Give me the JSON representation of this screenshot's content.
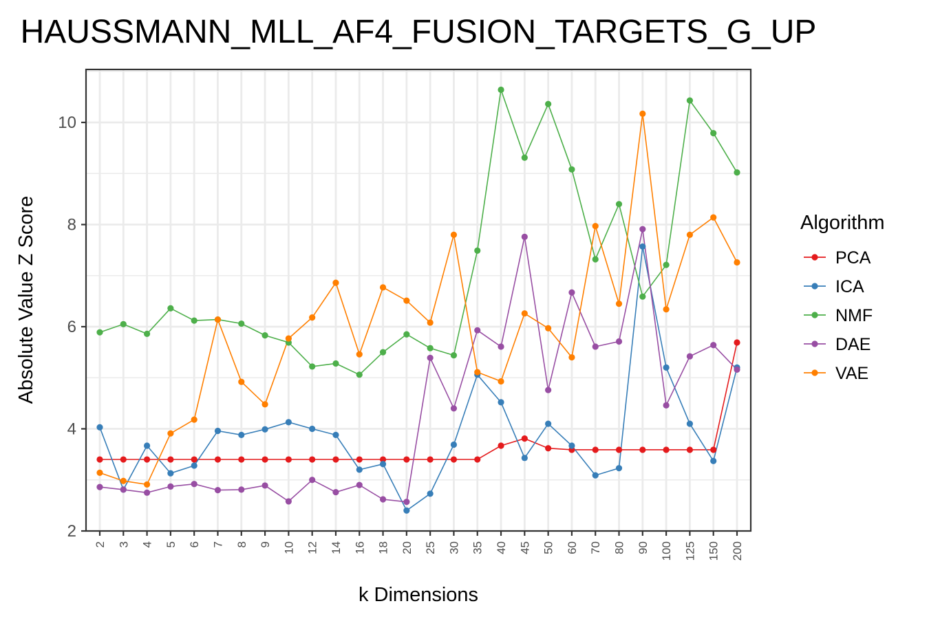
{
  "chart_data": {
    "type": "line",
    "title": "HAUSSMANN_MLL_AF4_FUSION_TARGETS_G_UP",
    "xlabel": "k Dimensions",
    "ylabel": "Absolute Value Z Score",
    "categories": [
      "2",
      "3",
      "4",
      "5",
      "6",
      "7",
      "8",
      "9",
      "10",
      "12",
      "14",
      "16",
      "18",
      "20",
      "25",
      "30",
      "35",
      "40",
      "45",
      "50",
      "60",
      "70",
      "80",
      "90",
      "100",
      "125",
      "150",
      "200"
    ],
    "ylim": [
      2,
      11
    ],
    "yticks": [
      "2",
      "4",
      "6",
      "8",
      "10"
    ],
    "grid": true,
    "legend": {
      "title": "Algorithm",
      "position": "right"
    },
    "series": [
      {
        "name": "PCA",
        "color": "#e41a1c",
        "values": [
          3.4,
          3.4,
          3.4,
          3.4,
          3.4,
          3.4,
          3.4,
          3.4,
          3.4,
          3.4,
          3.4,
          3.4,
          3.4,
          3.4,
          3.4,
          3.4,
          3.4,
          3.67,
          3.81,
          3.62,
          3.59,
          3.59,
          3.59,
          3.59,
          3.59,
          3.59,
          3.59,
          5.69
        ]
      },
      {
        "name": "ICA",
        "color": "#377eb8",
        "values": [
          4.03,
          2.81,
          3.67,
          3.13,
          3.28,
          3.96,
          3.88,
          3.99,
          4.13,
          4.0,
          3.88,
          3.2,
          3.31,
          2.4,
          2.73,
          3.69,
          5.06,
          4.52,
          3.43,
          4.1,
          3.67,
          3.09,
          3.23,
          7.57,
          5.2,
          4.1,
          3.37,
          5.2
        ]
      },
      {
        "name": "NMF",
        "color": "#4daf4a",
        "values": [
          5.89,
          6.05,
          5.86,
          6.36,
          6.12,
          6.14,
          6.06,
          5.83,
          5.69,
          5.22,
          5.28,
          5.06,
          5.5,
          5.85,
          5.58,
          5.44,
          7.49,
          10.64,
          9.31,
          10.36,
          9.08,
          7.32,
          8.4,
          6.59,
          7.21,
          10.43,
          9.79,
          9.02
        ]
      },
      {
        "name": "DAE",
        "color": "#984ea3",
        "values": [
          2.86,
          2.81,
          2.75,
          2.87,
          2.92,
          2.8,
          2.81,
          2.89,
          2.58,
          3.0,
          2.76,
          2.9,
          2.62,
          2.57,
          5.39,
          4.4,
          5.93,
          5.61,
          7.76,
          4.76,
          6.67,
          5.61,
          5.71,
          7.91,
          4.46,
          5.42,
          5.64,
          5.16
        ]
      },
      {
        "name": "VAE",
        "color": "#ff7f00",
        "values": [
          3.14,
          2.98,
          2.91,
          3.91,
          4.18,
          6.14,
          4.92,
          4.48,
          5.77,
          6.18,
          6.86,
          5.46,
          6.77,
          6.51,
          6.08,
          7.8,
          5.11,
          4.93,
          6.26,
          5.97,
          5.4,
          7.97,
          6.45,
          10.17,
          6.34,
          7.8,
          8.14,
          7.26
        ]
      }
    ]
  }
}
